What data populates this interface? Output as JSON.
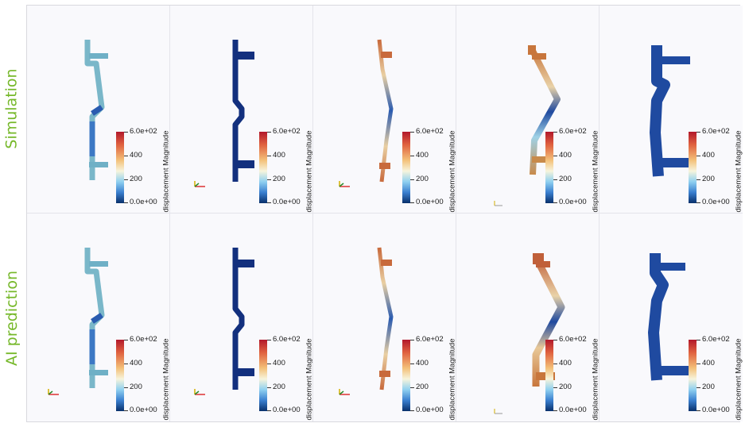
{
  "rows": [
    {
      "label": "Simulation"
    },
    {
      "label": "AI prediction"
    }
  ],
  "colorbar": {
    "title": "displacement Magnitude",
    "ticks": [
      "6.0e+02",
      "400",
      "200",
      "0.0e+00"
    ],
    "range": [
      0,
      600
    ],
    "colors": [
      "#08306b",
      "#3a7fcf",
      "#8fd0f0",
      "#f7f4dc",
      "#f3c17a",
      "#e0613f",
      "#b2182b"
    ]
  },
  "panel_count_per_row": 5,
  "theme": {
    "label_color": "#76b82a",
    "background": "#f9f9fc"
  }
}
